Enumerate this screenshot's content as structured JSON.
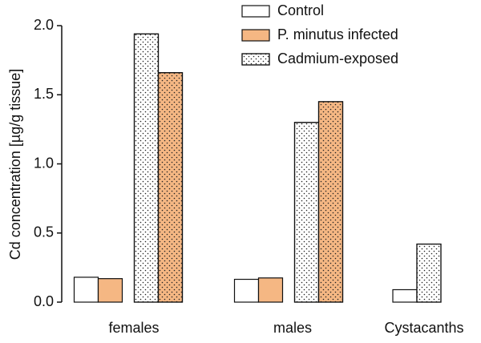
{
  "chart_data": {
    "type": "bar",
    "y_label": "Cd concentration [µg/g tissue]",
    "categories": [
      "females",
      "males",
      "Cystacanths"
    ],
    "series": [
      {
        "name": "Control",
        "color": "#ffffff",
        "pattern": "none",
        "values": [
          0.18,
          0.165,
          0.09
        ]
      },
      {
        "name": "P. minutus infected",
        "color": "#f5b783",
        "pattern": "none",
        "values": [
          0.17,
          0.175,
          null
        ]
      },
      {
        "name": "Cadmium-exposed",
        "color": "#ffffff",
        "pattern": "dots",
        "values": [
          1.94,
          1.3,
          0.42
        ]
      },
      {
        "color": "#f5b783",
        "pattern": "dots",
        "values": [
          1.66,
          1.45,
          null
        ]
      }
    ],
    "ylim": [
      0,
      2.0
    ],
    "yticks": [
      {
        "value": 0,
        "label": "0.0"
      },
      0.5,
      {
        "value": 1,
        "label": "1.0"
      },
      1.5,
      {
        "value": 2,
        "label": "2.0"
      }
    ],
    "legend": "top-right"
  }
}
